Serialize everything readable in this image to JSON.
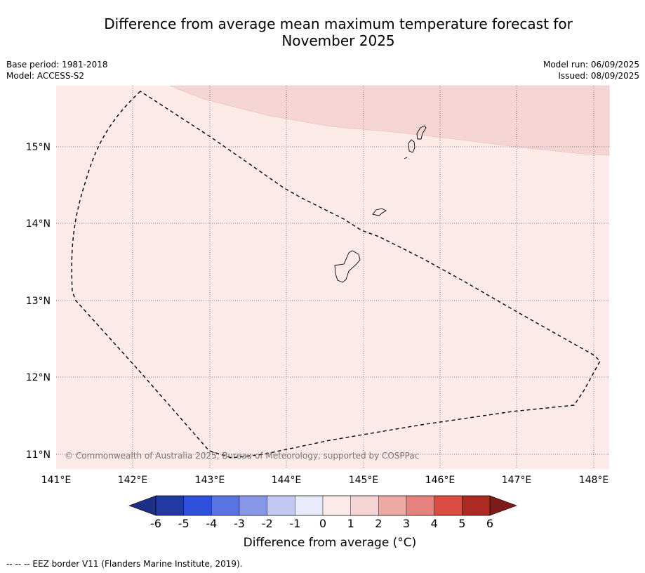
{
  "title_line1": "Difference from average mean maximum temperature forecast for",
  "title_line2": "November 2025",
  "base_period": "Base period: 1981-2018",
  "model": "Model: ACCESS-S2",
  "model_run": "Model run: 06/09/2025",
  "issued": "Issued: 08/09/2025",
  "copyright": "© Commonwealth of Australia 2025, Bureau of Meteorology, supported by COSPPac",
  "lat_ticks": [
    "15°N",
    "14°N",
    "13°N",
    "12°N",
    "11°N"
  ],
  "lon_ticks": [
    "141°E",
    "142°E",
    "143°E",
    "144°E",
    "145°E",
    "146°E",
    "147°E",
    "148°E"
  ],
  "colorbar": {
    "labels": [
      "-6",
      "-5",
      "-4",
      "-3",
      "-2",
      "-1",
      "0",
      "1",
      "2",
      "3",
      "4",
      "5",
      "6"
    ],
    "colors": [
      "#233aa5",
      "#2f4fdd",
      "#5b74e4",
      "#8798e9",
      "#c2c8f2",
      "#e8ebfa",
      "#fbeae8",
      "#f5d5d3",
      "#eeaba6",
      "#e6827d",
      "#dc4c41",
      "#ad2a22"
    ],
    "under_color": "#1d2f84",
    "over_color": "#7d1c1a",
    "title": "Difference from average (°C)"
  },
  "field_colors": {
    "base": "#fbeae8",
    "upper": "#f5d5d3"
  },
  "footnote": "--  --  -- EEZ border V11 (Flanders Marine Institute, 2019)."
}
